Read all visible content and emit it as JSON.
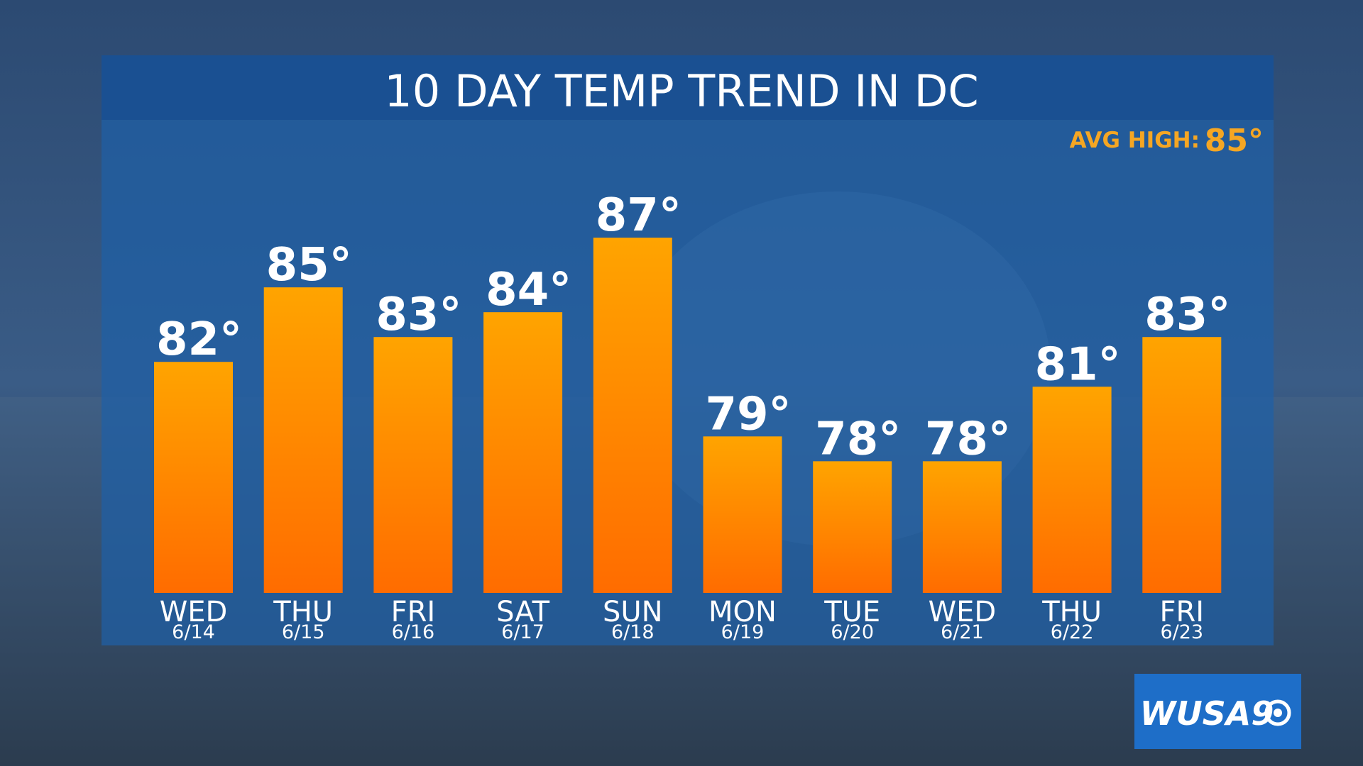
{
  "chart_data": {
    "type": "bar",
    "title": "10 DAY TEMP TREND IN DC",
    "categories": [
      "WED",
      "THU",
      "FRI",
      "SAT",
      "SUN",
      "MON",
      "TUE",
      "WED",
      "THU",
      "FRI"
    ],
    "dates": [
      "6/14",
      "6/15",
      "6/16",
      "6/17",
      "6/18",
      "6/19",
      "6/20",
      "6/21",
      "6/22",
      "6/23"
    ],
    "values": [
      82,
      85,
      83,
      84,
      87,
      79,
      78,
      78,
      81,
      83
    ],
    "value_labels": [
      "82°",
      "85°",
      "83°",
      "84°",
      "87°",
      "79°",
      "78°",
      "78°",
      "81°",
      "83°"
    ],
    "color": "#ff8a00",
    "ylim": [
      72.7,
      90
    ],
    "annotation": {
      "label": "AVG HIGH:",
      "value": 85,
      "value_label": "85°"
    },
    "logo": "WUSA9"
  }
}
